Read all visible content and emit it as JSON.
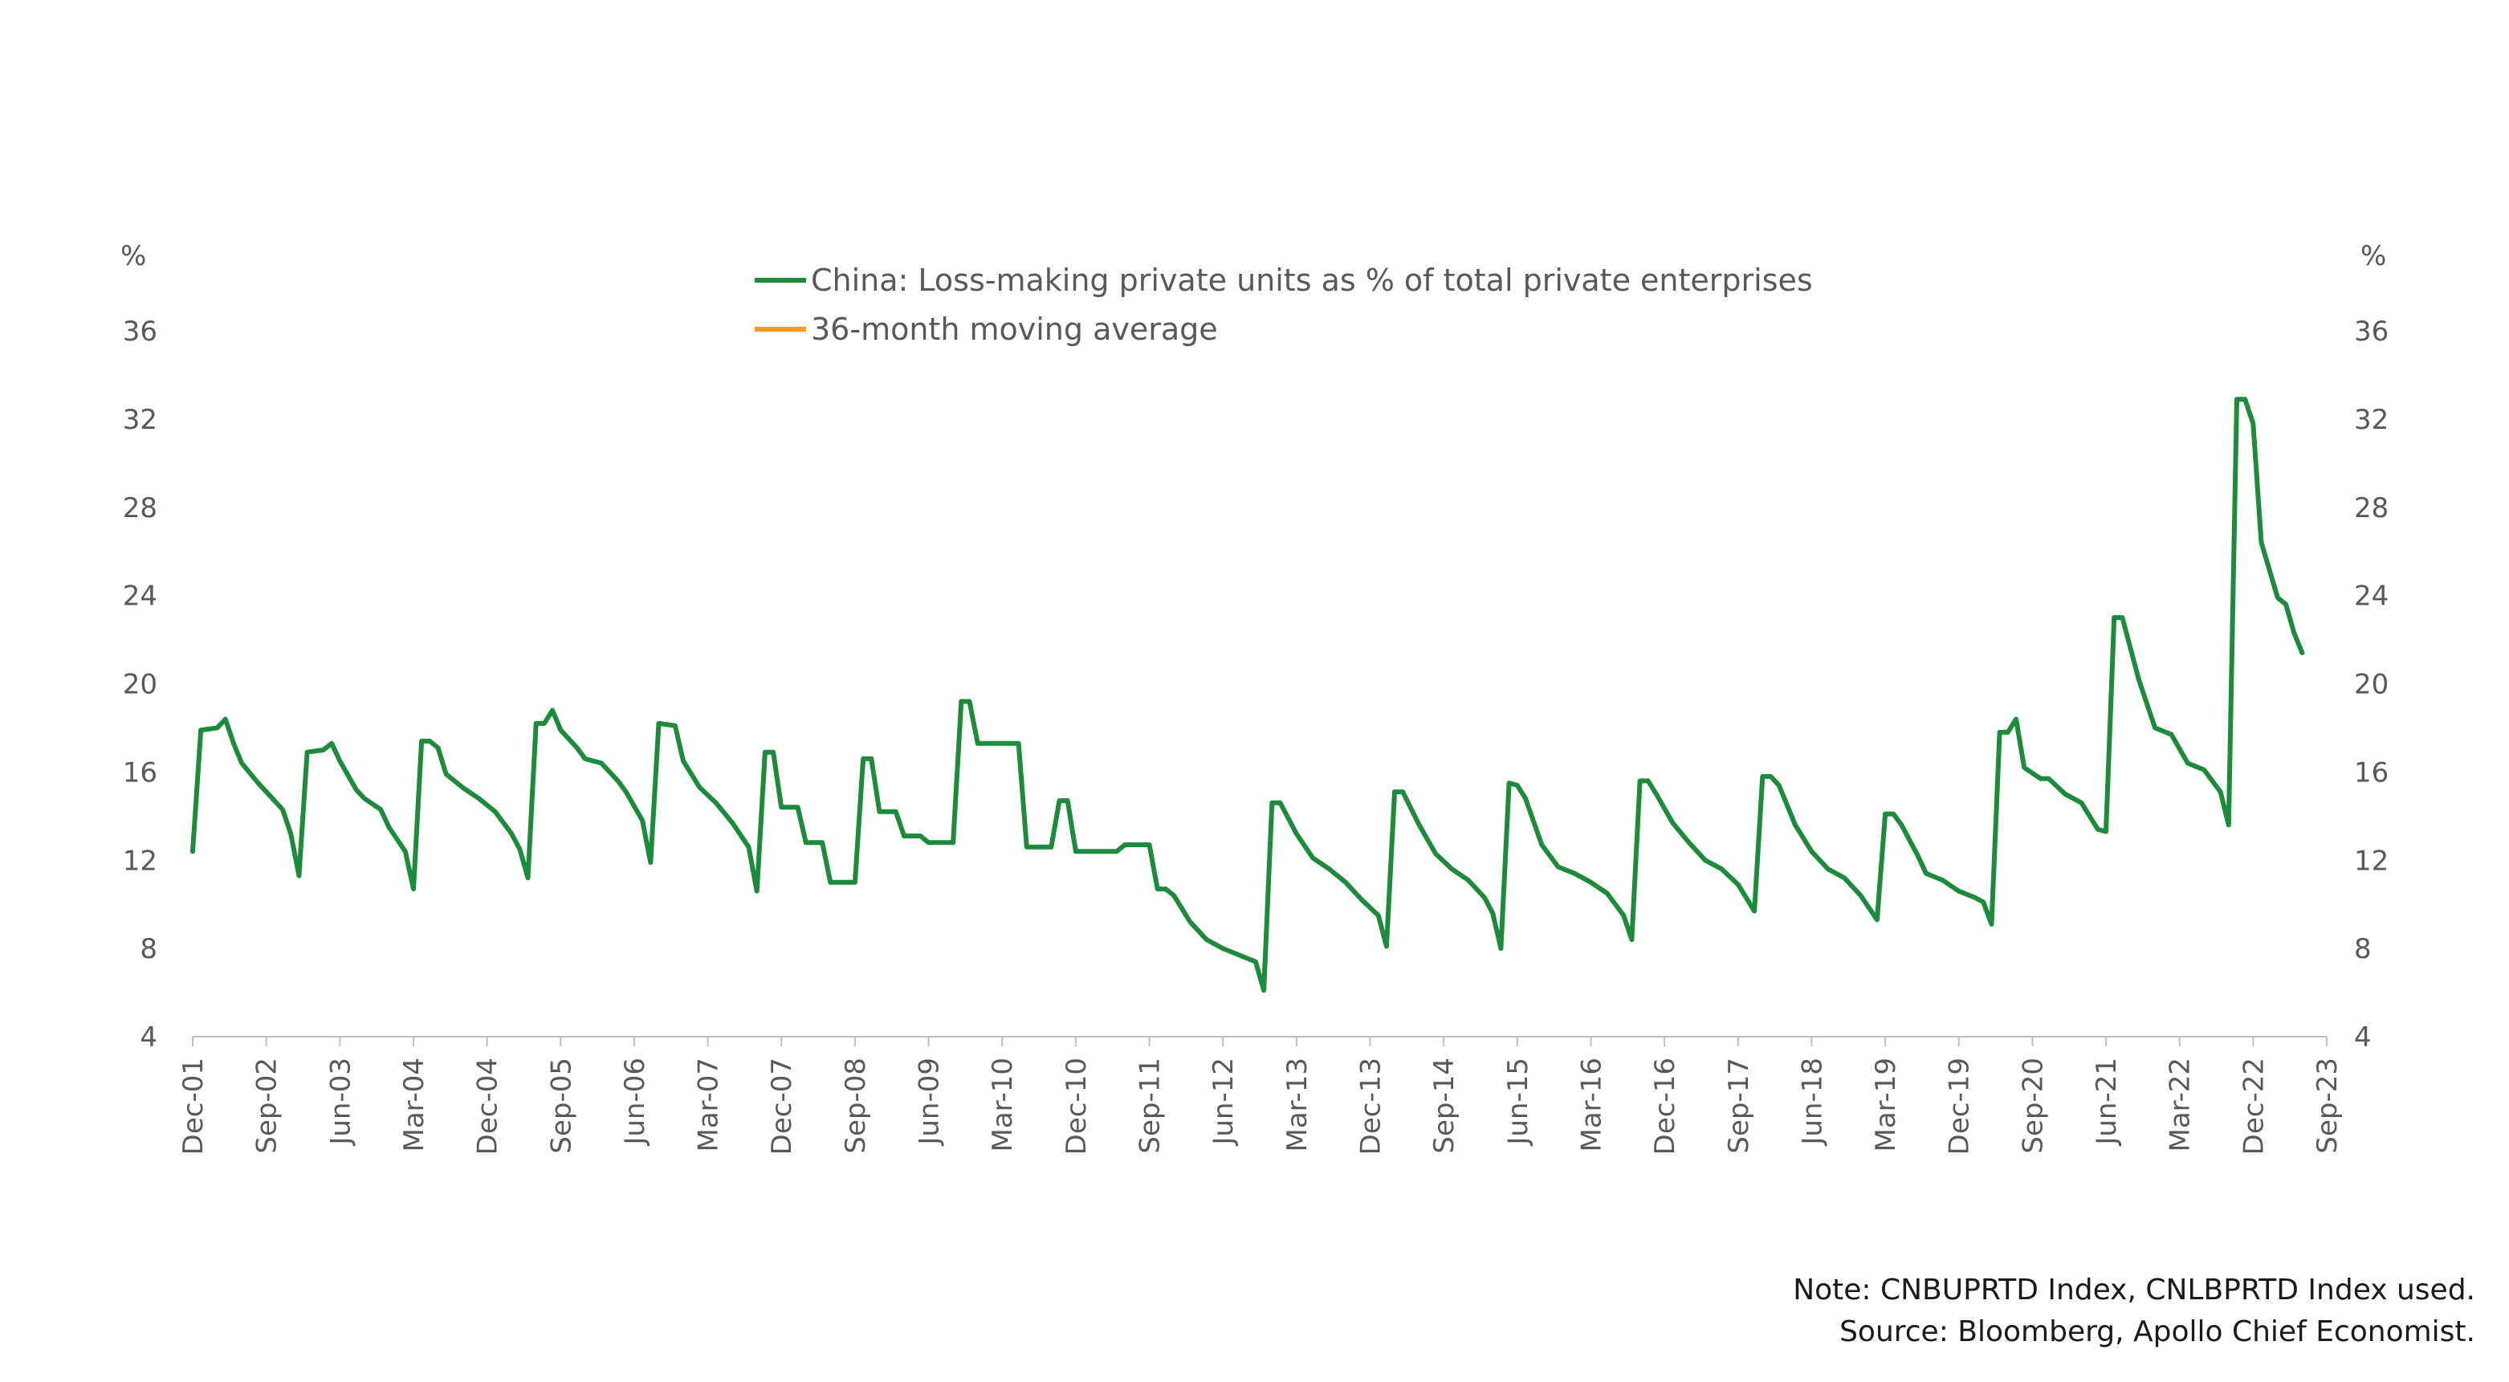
{
  "chart_data": {
    "type": "line",
    "title": "",
    "xlabel": "",
    "ylabel_left": "%",
    "ylabel_right": "%",
    "ylim": [
      4,
      36
    ],
    "yticks": [
      4,
      8,
      12,
      16,
      20,
      24,
      28,
      32,
      36
    ],
    "x_tick_labels": [
      "Dec-01",
      "Sep-02",
      "Jun-03",
      "Mar-04",
      "Dec-04",
      "Sep-05",
      "Jun-06",
      "Mar-07",
      "Dec-07",
      "Sep-08",
      "Jun-09",
      "Mar-10",
      "Dec-10",
      "Sep-11",
      "Jun-12",
      "Mar-13",
      "Dec-13",
      "Sep-14",
      "Jun-15",
      "Mar-16",
      "Dec-16",
      "Sep-17",
      "Jun-18",
      "Mar-19",
      "Dec-19",
      "Sep-20",
      "Jun-21",
      "Mar-22",
      "Dec-22",
      "Sep-23"
    ],
    "x_range": [
      "Dec-01",
      "Sep-23"
    ],
    "grid": false,
    "legend_position": "top-center",
    "series": [
      {
        "name": "China: Loss-making private units as % of total private enterprises",
        "color": "#1e8a3c",
        "points": [
          [
            "Dec-01",
            12.4
          ],
          [
            "Jan-02",
            17.9
          ],
          [
            "Mar-02",
            18.0
          ],
          [
            "Apr-02",
            18.4
          ],
          [
            "May-02",
            17.3
          ],
          [
            "Jun-02",
            16.4
          ],
          [
            "Aug-02",
            15.5
          ],
          [
            "Sep-02",
            15.1
          ],
          [
            "Nov-02",
            14.3
          ],
          [
            "Dec-02",
            13.2
          ],
          [
            "Jan-03",
            11.3
          ],
          [
            "Feb-03",
            16.9
          ],
          [
            "Apr-03",
            17.0
          ],
          [
            "May-03",
            17.3
          ],
          [
            "Jun-03",
            16.5
          ],
          [
            "Aug-03",
            15.2
          ],
          [
            "Sep-03",
            14.8
          ],
          [
            "Nov-03",
            14.3
          ],
          [
            "Dec-03",
            13.5
          ],
          [
            "Feb-04",
            12.4
          ],
          [
            "Mar-04",
            10.7
          ],
          [
            "Apr-04",
            17.4
          ],
          [
            "May-04",
            17.4
          ],
          [
            "Jun-04",
            17.1
          ],
          [
            "Jul-04",
            15.9
          ],
          [
            "Sep-04",
            15.3
          ],
          [
            "Nov-04",
            14.8
          ],
          [
            "Jan-05",
            14.2
          ],
          [
            "Mar-05",
            13.2
          ],
          [
            "Apr-05",
            12.5
          ],
          [
            "May-05",
            11.2
          ],
          [
            "Jun-05",
            18.2
          ],
          [
            "Jul-05",
            18.2
          ],
          [
            "Aug-05",
            18.8
          ],
          [
            "Sep-05",
            17.9
          ],
          [
            "Nov-05",
            17.1
          ],
          [
            "Dec-05",
            16.6
          ],
          [
            "Feb-06",
            16.4
          ],
          [
            "Apr-06",
            15.6
          ],
          [
            "May-06",
            15.1
          ],
          [
            "Jul-06",
            13.8
          ],
          [
            "Aug-06",
            11.9
          ],
          [
            "Sep-06",
            18.2
          ],
          [
            "Nov-06",
            18.1
          ],
          [
            "Dec-06",
            16.5
          ],
          [
            "Feb-07",
            15.3
          ],
          [
            "Apr-07",
            14.6
          ],
          [
            "Jun-07",
            13.7
          ],
          [
            "Aug-07",
            12.6
          ],
          [
            "Sep-07",
            10.6
          ],
          [
            "Oct-07",
            16.9
          ],
          [
            "Nov-07",
            16.9
          ],
          [
            "Dec-07",
            14.4
          ],
          [
            "Feb-08",
            14.4
          ],
          [
            "Mar-08",
            12.8
          ],
          [
            "May-08",
            12.8
          ],
          [
            "Jun-08",
            11.0
          ],
          [
            "Sep-08",
            11.0
          ],
          [
            "Oct-08",
            16.6
          ],
          [
            "Nov-08",
            16.6
          ],
          [
            "Dec-08",
            14.2
          ],
          [
            "Feb-09",
            14.2
          ],
          [
            "Mar-09",
            13.1
          ],
          [
            "May-09",
            13.1
          ],
          [
            "Jun-09",
            12.8
          ],
          [
            "Sep-09",
            12.8
          ],
          [
            "Oct-09",
            19.2
          ],
          [
            "Nov-09",
            19.2
          ],
          [
            "Dec-09",
            17.3
          ],
          [
            "May-10",
            17.3
          ],
          [
            "Jun-10",
            12.6
          ],
          [
            "Sep-10",
            12.6
          ],
          [
            "Oct-10",
            14.7
          ],
          [
            "Nov-10",
            14.7
          ],
          [
            "Dec-10",
            12.4
          ],
          [
            "May-11",
            12.4
          ],
          [
            "Jun-11",
            12.7
          ],
          [
            "Sep-11",
            12.7
          ],
          [
            "Oct-11",
            10.7
          ],
          [
            "Nov-11",
            10.7
          ],
          [
            "Dec-11",
            10.4
          ],
          [
            "Feb-12",
            9.2
          ],
          [
            "Apr-12",
            8.4
          ],
          [
            "Jun-12",
            8.0
          ],
          [
            "Aug-12",
            7.7
          ],
          [
            "Oct-12",
            7.4
          ],
          [
            "Nov-12",
            6.1
          ],
          [
            "Dec-12",
            14.6
          ],
          [
            "Jan-13",
            14.6
          ],
          [
            "Mar-13",
            13.2
          ],
          [
            "May-13",
            12.1
          ],
          [
            "Jul-13",
            11.6
          ],
          [
            "Sep-13",
            11.0
          ],
          [
            "Nov-13",
            10.2
          ],
          [
            "Jan-14",
            9.5
          ],
          [
            "Feb-14",
            8.1
          ],
          [
            "Mar-14",
            15.1
          ],
          [
            "Apr-14",
            15.1
          ],
          [
            "Jun-14",
            13.6
          ],
          [
            "Aug-14",
            12.3
          ],
          [
            "Oct-14",
            11.6
          ],
          [
            "Dec-14",
            11.1
          ],
          [
            "Feb-15",
            10.3
          ],
          [
            "Mar-15",
            9.6
          ],
          [
            "Apr-15",
            8.0
          ],
          [
            "May-15",
            15.5
          ],
          [
            "Jun-15",
            15.4
          ],
          [
            "Jul-15",
            14.8
          ],
          [
            "Sep-15",
            12.7
          ],
          [
            "Nov-15",
            11.7
          ],
          [
            "Jan-16",
            11.4
          ],
          [
            "Mar-16",
            11.0
          ],
          [
            "May-16",
            10.5
          ],
          [
            "Jul-16",
            9.5
          ],
          [
            "Aug-16",
            8.4
          ],
          [
            "Sep-16",
            15.6
          ],
          [
            "Oct-16",
            15.6
          ],
          [
            "Nov-16",
            15.0
          ],
          [
            "Jan-17",
            13.7
          ],
          [
            "Mar-17",
            12.8
          ],
          [
            "May-17",
            12.0
          ],
          [
            "Jul-17",
            11.6
          ],
          [
            "Sep-17",
            10.9
          ],
          [
            "Nov-17",
            9.7
          ],
          [
            "Dec-17",
            15.8
          ],
          [
            "Jan-18",
            15.8
          ],
          [
            "Feb-18",
            15.4
          ],
          [
            "Apr-18",
            13.6
          ],
          [
            "Jun-18",
            12.4
          ],
          [
            "Aug-18",
            11.6
          ],
          [
            "Oct-18",
            11.2
          ],
          [
            "Dec-18",
            10.4
          ],
          [
            "Feb-19",
            9.3
          ],
          [
            "Mar-19",
            14.1
          ],
          [
            "Apr-19",
            14.1
          ],
          [
            "May-19",
            13.6
          ],
          [
            "Jul-19",
            12.2
          ],
          [
            "Aug-19",
            11.4
          ],
          [
            "Oct-19",
            11.1
          ],
          [
            "Dec-19",
            10.6
          ],
          [
            "Feb-20",
            10.3
          ],
          [
            "Mar-20",
            10.1
          ],
          [
            "Apr-20",
            9.1
          ],
          [
            "May-20",
            17.8
          ],
          [
            "Jun-20",
            17.8
          ],
          [
            "Jul-20",
            18.4
          ],
          [
            "Aug-20",
            16.2
          ],
          [
            "Oct-20",
            15.7
          ],
          [
            "Nov-20",
            15.7
          ],
          [
            "Jan-21",
            15.0
          ],
          [
            "Mar-21",
            14.6
          ],
          [
            "May-21",
            13.4
          ],
          [
            "Jun-21",
            13.3
          ],
          [
            "Jul-21",
            23.0
          ],
          [
            "Aug-21",
            23.0
          ],
          [
            "Oct-21",
            20.2
          ],
          [
            "Dec-21",
            18.0
          ],
          [
            "Feb-22",
            17.7
          ],
          [
            "Apr-22",
            16.4
          ],
          [
            "Jun-22",
            16.1
          ],
          [
            "Aug-22",
            15.1
          ],
          [
            "Sep-22",
            13.6
          ],
          [
            "Oct-22",
            32.9
          ],
          [
            "Nov-22",
            32.9
          ],
          [
            "Dec-22",
            31.8
          ],
          [
            "Jan-23",
            26.4
          ],
          [
            "Mar-23",
            23.9
          ],
          [
            "Apr-23",
            23.6
          ],
          [
            "May-23",
            22.3
          ],
          [
            "Jun-23",
            21.4
          ]
        ]
      },
      {
        "name": "36-month moving average",
        "color": "#f59a23",
        "points": []
      }
    ]
  },
  "notes": {
    "line1": "Note: CNBUPRTD Index, CNLBPRTD Index used.",
    "line2": "Source: Bloomberg, Apollo Chief Economist."
  }
}
